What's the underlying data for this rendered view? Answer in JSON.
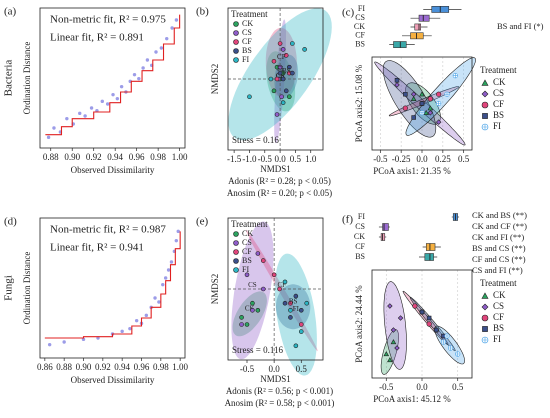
{
  "chart_data": [
    {
      "type": "fit",
      "panel_label": "(a)",
      "side_label": "Bacteria",
      "xlabel": "Observed Dissimilarity",
      "ylabel": "Ordination Distance",
      "annotations": [
        "Non-metric fit, R² = 0.975",
        "Linear fit, R² = 0.891"
      ],
      "xlim": [
        0.87,
        1.005
      ],
      "ylim": [
        0,
        1.05
      ],
      "xticks": [
        0.88,
        {
          "value": 0.9,
          "label": "0.90"
        },
        0.92,
        0.94,
        0.96,
        0.98,
        {
          "value": 1,
          "label": "1.00"
        }
      ],
      "point_color": "#7b7be0",
      "line_color": "#e02020",
      "points": {
        "x": [
          0.878,
          0.883,
          0.889,
          0.895,
          0.901,
          0.907,
          0.912,
          0.918,
          0.923,
          0.928,
          0.933,
          0.938,
          0.942,
          0.946,
          0.95,
          0.954,
          0.958,
          0.962,
          0.966,
          0.97,
          0.974,
          0.978,
          0.983,
          0.988,
          0.993,
          0.997
        ],
        "y": [
          0.08,
          0.15,
          0.12,
          0.22,
          0.18,
          0.26,
          0.24,
          0.3,
          0.28,
          0.35,
          0.33,
          0.4,
          0.37,
          0.46,
          0.42,
          0.5,
          0.55,
          0.52,
          0.6,
          0.66,
          0.62,
          0.72,
          0.75,
          0.82,
          0.9,
          0.96
        ]
      },
      "step": {
        "x": [
          0.875,
          0.89,
          0.9,
          0.92,
          0.935,
          0.945,
          0.955,
          0.965,
          0.975,
          0.985,
          0.995,
          1
        ],
        "y": [
          0.1,
          0.16,
          0.22,
          0.27,
          0.34,
          0.42,
          0.5,
          0.58,
          0.66,
          0.78,
          0.9,
          1
        ]
      }
    },
    {
      "type": "nmds",
      "panel_label": "(b)",
      "xlabel": "NMDS1",
      "ylabel": "NMDS2",
      "legend_title": "Treatment",
      "stress": "Stress = 0.16",
      "annotations": [
        "Adonis (R² = 0.28; p < 0.05)",
        "Anosim (R² = 0.20; p < 0.05)"
      ],
      "xlim": [
        -1.7,
        1.4
      ],
      "ylim": [
        -1.2,
        1.2
      ],
      "xticks": [
        -1.5,
        {
          "value": -1,
          "label": "-1.0"
        },
        -0.5,
        {
          "value": 0,
          "label": "0.0"
        },
        0.5,
        {
          "value": 1,
          "label": "1.0"
        }
      ],
      "reflines_x": [
        0
      ],
      "reflines_y": [
        0
      ],
      "series": [
        {
          "name": "CK",
          "color": "#2ca25f",
          "x": [
            -0.2,
            0.1,
            0.3,
            -0.1,
            0
          ],
          "y": [
            -0.2,
            0.1,
            -0.3,
            0.2,
            0
          ]
        },
        {
          "name": "CS",
          "color": "#8e5cc8",
          "x": [
            -0.1,
            0.1,
            0,
            0.05,
            -0.05
          ],
          "y": [
            -0.6,
            0.5,
            0.2,
            -0.3,
            0
          ]
        },
        {
          "name": "CF",
          "color": "#e0457b",
          "x": [
            -0.2,
            0.3,
            0,
            0.2,
            -0.1
          ],
          "y": [
            0.3,
            0.1,
            0.6,
            0.4,
            0
          ]
        },
        {
          "name": "BS",
          "color": "#3b4f8a",
          "x": [
            0.1,
            0.3,
            0.2,
            0.4,
            0
          ],
          "y": [
            0,
            0.2,
            -0.2,
            0.1,
            0.1
          ]
        },
        {
          "name": "FI",
          "color": "#2bb5c4",
          "x": [
            -1,
            0.8,
            -0.3,
            0.4,
            0.1
          ],
          "y": [
            -0.3,
            0.5,
            0,
            0.6,
            -0.4
          ]
        }
      ]
    },
    {
      "type": "pcoa",
      "panel_label": "(c)",
      "xlabel": "PCoA axis1:  21.35 %",
      "ylabel": "PCoA axis2:  15.08 %",
      "legend_title": "Treatment",
      "annotations": [
        "BS and FI (*)"
      ],
      "xlim": [
        -0.6,
        0.6
      ],
      "ylim": [
        -0.5,
        0.5
      ],
      "xticks": [
        -0.5,
        -0.25,
        {
          "value": 0,
          "label": "0.0"
        },
        0.25,
        0.5
      ],
      "grid": true,
      "boxes": [
        {
          "name": "FI",
          "color": "#4a90d9",
          "box": [
            0.05,
            0.15,
            0.25,
            0.35,
            0.5
          ]
        },
        {
          "name": "CS",
          "color": "#9b6bd1",
          "box": [
            -0.1,
            0,
            0.05,
            0.12,
            0.25
          ]
        },
        {
          "name": "CK",
          "color": "#f0a0b8",
          "box": [
            -0.1,
            -0.05,
            0,
            0.02,
            0.1
          ]
        },
        {
          "name": "CF",
          "color": "#f5b041",
          "box": [
            -0.2,
            -0.1,
            -0.03,
            0.05,
            0.15
          ]
        },
        {
          "name": "BS",
          "color": "#3aa8a8",
          "box": [
            -0.35,
            -0.3,
            -0.22,
            -0.15,
            -0.05
          ]
        }
      ],
      "series": [
        {
          "name": "CK",
          "color": "#2ca25f",
          "marker": "triangle",
          "x": [
            -0.1,
            0.1,
            0,
            0.05
          ],
          "y": [
            0.05,
            -0.05,
            0.1,
            -0.1
          ]
        },
        {
          "name": "CS",
          "color": "#8e5cc8",
          "marker": "diamond",
          "x": [
            -0.3,
            0.2,
            -0.1,
            0.1
          ],
          "y": [
            0.2,
            -0.2,
            0.1,
            -0.1
          ]
        },
        {
          "name": "CF",
          "color": "#e0457b",
          "marker": "circle",
          "x": [
            -0.2,
            0.2,
            0,
            0.1
          ],
          "y": [
            -0.05,
            0.1,
            0,
            0.05
          ]
        },
        {
          "name": "BS",
          "color": "#3b4f8a",
          "marker": "square",
          "x": [
            -0.3,
            -0.1,
            -0.2,
            0
          ],
          "y": [
            0.25,
            -0.15,
            0.1,
            0
          ]
        },
        {
          "name": "FI",
          "color": "#4aa3e8",
          "marker": "circle-plus",
          "x": [
            0,
            0.4,
            0.2,
            0.3
          ],
          "y": [
            -0.1,
            0.3,
            0,
            0.1
          ]
        }
      ]
    },
    {
      "type": "fit",
      "panel_label": "(d)",
      "side_label": "Fungi",
      "xlabel": "Observed Dissimilarity",
      "ylabel": "Ordination Distance",
      "annotations": [
        "Non-metric fit, R² = 0.987",
        "Linear fit, R² = 0.941"
      ],
      "xlim": [
        0.855,
        1.005
      ],
      "ylim": [
        0,
        1.05
      ],
      "xticks": [
        0.86,
        0.88,
        {
          "value": 0.9,
          "label": "0.90"
        },
        0.92,
        0.94,
        0.96,
        0.98,
        {
          "value": 1,
          "label": "1.00"
        }
      ],
      "point_color": "#7b7be0",
      "line_color": "#e02020",
      "points": {
        "x": [
          0.865,
          0.88,
          0.9,
          0.915,
          0.93,
          0.94,
          0.948,
          0.955,
          0.96,
          0.965,
          0.97,
          0.974,
          0.978,
          0.982,
          0.985,
          0.988,
          0.991,
          0.994,
          0.996,
          0.998
        ],
        "y": [
          0.1,
          0.12,
          0.14,
          0.15,
          0.18,
          0.2,
          0.22,
          0.28,
          0.26,
          0.32,
          0.38,
          0.45,
          0.42,
          0.55,
          0.6,
          0.66,
          0.72,
          0.8,
          0.88,
          0.95
        ]
      },
      "step": {
        "x": [
          0.86,
          0.9,
          0.93,
          0.95,
          0.96,
          0.97,
          0.98,
          0.985,
          0.99,
          0.995,
          1
        ],
        "y": [
          0.15,
          0.16,
          0.18,
          0.24,
          0.3,
          0.38,
          0.48,
          0.58,
          0.7,
          0.82,
          0.95
        ]
      }
    },
    {
      "type": "nmds",
      "panel_label": "(e)",
      "xlabel": "NMDS1",
      "ylabel": "NMDS2",
      "legend_title": "Treatment",
      "stress": "Stress = 0.116",
      "annotations": [
        "Adonis (R² = 0.56; p < 0.001)",
        "Anosim (R² = 0.58; p < 0.001)"
      ],
      "xlim": [
        -0.85,
        0.9
      ],
      "ylim": [
        -1,
        1
      ],
      "xticks": [
        -0.5,
        {
          "value": 0,
          "label": "0.0"
        },
        0.5
      ],
      "reflines_x": [
        0
      ],
      "reflines_y": [
        0
      ],
      "series": [
        {
          "name": "CK",
          "color": "#2ca25f",
          "x": [
            -0.6,
            -0.4,
            -0.5,
            -0.3
          ],
          "y": [
            -0.4,
            -0.2,
            -0.5,
            -0.3
          ]
        },
        {
          "name": "CS",
          "color": "#8e5cc8",
          "x": [
            -0.5,
            -0.3,
            -0.4,
            -0.2,
            -0.6
          ],
          "y": [
            0.2,
            0.5,
            -0.3,
            0,
            -0.5
          ]
        },
        {
          "name": "CF",
          "color": "#e0457b",
          "x": [
            -0.2,
            0.5,
            0,
            0.3,
            0.1
          ],
          "y": [
            0.4,
            -0.5,
            0.2,
            -0.2,
            0
          ]
        },
        {
          "name": "BS",
          "color": "#3b4f8a",
          "x": [
            0.2,
            0.4,
            0.3,
            0.5
          ],
          "y": [
            -0.2,
            -0.1,
            -0.4,
            -0.3
          ]
        },
        {
          "name": "FI",
          "color": "#2bb5c4",
          "x": [
            0.2,
            0.5,
            0.3,
            0.6,
            0.4
          ],
          "y": [
            0.1,
            -0.6,
            -0.3,
            -0.2,
            -0.8
          ]
        }
      ]
    },
    {
      "type": "pcoa",
      "panel_label": "(f)",
      "xlabel": "PCoA axis1:  45.12 %",
      "ylabel": "PCoA axis2:  24.44 %",
      "legend_title": "Treatment",
      "annotations": [
        "CK and BS (**)",
        "CK and CF (**)",
        "CK and FI (**)",
        "BS and CS (**)",
        "CF and CS (**)",
        "CS and FI (**)"
      ],
      "xlim": [
        -0.7,
        0.7
      ],
      "ylim": [
        -0.5,
        0.4
      ],
      "xticks": [
        -0.5,
        {
          "value": 0,
          "label": "0.0"
        },
        0.5
      ],
      "grid": true,
      "boxes": [
        {
          "name": "FI",
          "color": "#4a90d9",
          "box": [
            0.45,
            0.47,
            0.5,
            0.53,
            0.55
          ]
        },
        {
          "name": "CS",
          "color": "#9b6bd1",
          "box": [
            -0.55,
            -0.5,
            -0.48,
            -0.42,
            -0.4
          ]
        },
        {
          "name": "CK",
          "color": "#f0a0b8",
          "box": [
            -0.55,
            -0.52,
            -0.5,
            -0.47,
            -0.45
          ]
        },
        {
          "name": "CF",
          "color": "#f5b041",
          "box": [
            0.05,
            0.1,
            0.15,
            0.22,
            0.3
          ]
        },
        {
          "name": "BS",
          "color": "#3aa8a8",
          "box": [
            0,
            0.08,
            0.15,
            0.2,
            0.25
          ]
        }
      ],
      "series": [
        {
          "name": "CK",
          "color": "#2ca25f",
          "marker": "triangle",
          "x": [
            -0.5,
            -0.4,
            -0.45
          ],
          "y": [
            -0.3,
            -0.2,
            -0.35
          ]
        },
        {
          "name": "CS",
          "color": "#8e5cc8",
          "marker": "diamond",
          "x": [
            -0.45,
            -0.35,
            -0.4,
            -0.3
          ],
          "y": [
            0.1,
            -0.25,
            -0.1,
            0
          ]
        },
        {
          "name": "CF",
          "color": "#e0457b",
          "marker": "circle",
          "x": [
            -0.1,
            0.1,
            0,
            0.2
          ],
          "y": [
            0.1,
            -0.05,
            0.05,
            -0.1
          ]
        },
        {
          "name": "BS",
          "color": "#3b4f8a",
          "marker": "square",
          "x": [
            0,
            0.3,
            0.1,
            0.2
          ],
          "y": [
            0.05,
            -0.15,
            0,
            -0.1
          ]
        },
        {
          "name": "FI",
          "color": "#4aa3e8",
          "marker": "circle-plus",
          "x": [
            0.3,
            0.5,
            0.4,
            0.35
          ],
          "y": [
            -0.2,
            -0.3,
            -0.25,
            -0.15
          ]
        }
      ]
    }
  ]
}
